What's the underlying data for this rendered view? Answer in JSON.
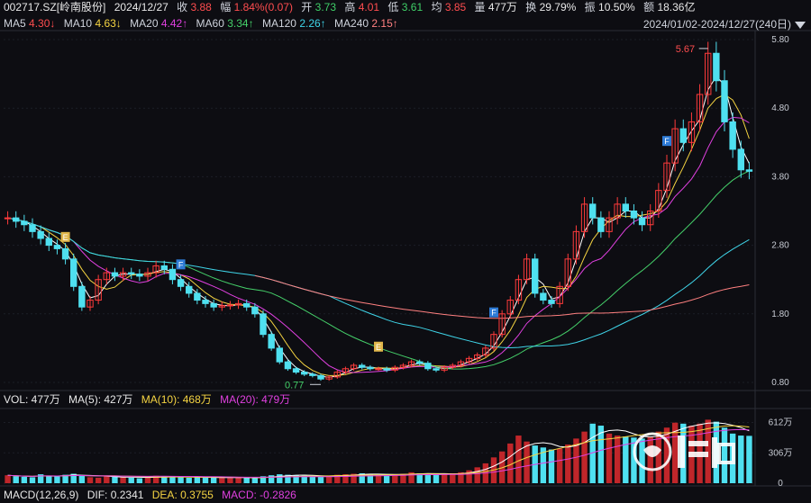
{
  "header": {
    "code": "002717.SZ[岭南股份]",
    "date": "2024/12/27",
    "close_label": "收",
    "close": "3.88",
    "change_label": "幅",
    "change": "1.84%(0.07)",
    "open_label": "开",
    "open": "3.73",
    "high_label": "高",
    "high": "4.01",
    "low_label": "低",
    "low": "3.61",
    "avg_label": "均",
    "avg": "3.85",
    "vol_label": "量",
    "vol": "477万",
    "turnover_label": "换",
    "turnover": "29.79%",
    "amplitude_label": "振",
    "amplitude": "10.50%",
    "amount_label": "额",
    "amount": "18.36亿"
  },
  "ma_bar": {
    "ma5": {
      "label": "MA5",
      "value": "4.30↓"
    },
    "ma10": {
      "label": "MA10",
      "value": "4.63↓"
    },
    "ma20": {
      "label": "MA20",
      "value": "4.42↑"
    },
    "ma60": {
      "label": "MA60",
      "value": "3.34↑"
    },
    "ma120": {
      "label": "MA120",
      "value": "2.26↑"
    },
    "ma240": {
      "label": "MA240",
      "value": "2.15↑"
    },
    "range": "2024/01/02-2024/12/27(240日)"
  },
  "vol_bar": {
    "vol": "VOL: 477万",
    "ma5": "MA(5): 427万",
    "ma10": "MA(10): 468万",
    "ma20": "MA(20): 479万"
  },
  "macd_bar": {
    "label": "MACD(12,26,9)",
    "dif": "DIF: 0.2341",
    "dea": "DEA: 0.3755",
    "macd": "MACD: -0.2826"
  },
  "chart_data": {
    "type": "candlestick",
    "price_axis": {
      "ticks": [
        "5.80",
        "4.80",
        "3.80",
        "2.80",
        "1.80",
        "0.80"
      ],
      "ylim": [
        0.8,
        5.8
      ]
    },
    "volume_axis": {
      "ticks": [
        "612万",
        "306万",
        "0"
      ]
    },
    "annotations": {
      "high": "5.67",
      "low": "0.77",
      "markers": [
        "F",
        "E"
      ]
    },
    "price_series": [
      3.2,
      3.15,
      3.1,
      3.0,
      2.9,
      2.8,
      2.75,
      2.6,
      2.2,
      1.9,
      2.0,
      2.3,
      2.4,
      2.35,
      2.4,
      2.38,
      2.35,
      2.4,
      2.5,
      2.45,
      2.3,
      2.2,
      2.1,
      2.0,
      1.95,
      1.9,
      1.92,
      1.93,
      1.95,
      1.9,
      1.8,
      1.5,
      1.3,
      1.1,
      1.0,
      0.95,
      0.92,
      0.9,
      0.85,
      0.88,
      0.95,
      1.0,
      1.05,
      1.02,
      1.0,
      1.0,
      0.98,
      1.02,
      1.05,
      1.1,
      1.08,
      1.0,
      0.98,
      1.02,
      1.05,
      1.1,
      1.15,
      1.2,
      1.3,
      1.5,
      1.8,
      2.0,
      2.3,
      2.6,
      2.1,
      2.0,
      1.95,
      2.2,
      2.6,
      3.0,
      3.4,
      3.2,
      3.0,
      3.2,
      3.4,
      3.3,
      3.2,
      3.1,
      3.3,
      3.6,
      4.0,
      4.5,
      4.3,
      4.6,
      5.0,
      5.6,
      5.2,
      4.6,
      4.2,
      3.9,
      3.88
    ],
    "ma_series_names": [
      "MA5",
      "MA10",
      "MA20",
      "MA60",
      "MA120",
      "MA240"
    ],
    "volume_series": [
      80,
      70,
      65,
      60,
      90,
      75,
      70,
      85,
      95,
      80,
      60,
      55,
      70,
      65,
      60,
      55,
      50,
      60,
      75,
      70,
      65,
      60,
      55,
      60,
      58,
      56,
      55,
      54,
      60,
      55,
      50,
      70,
      80,
      90,
      85,
      80,
      75,
      70,
      65,
      72,
      85,
      90,
      95,
      100,
      90,
      85,
      80,
      88,
      95,
      110,
      100,
      90,
      85,
      95,
      100,
      110,
      130,
      160,
      200,
      260,
      320,
      400,
      480,
      420,
      380,
      360,
      340,
      350,
      390,
      450,
      520,
      600,
      580,
      500,
      480,
      470,
      460,
      450,
      470,
      520,
      560,
      610,
      600,
      580,
      600,
      640,
      620,
      560,
      500,
      480,
      477
    ]
  }
}
